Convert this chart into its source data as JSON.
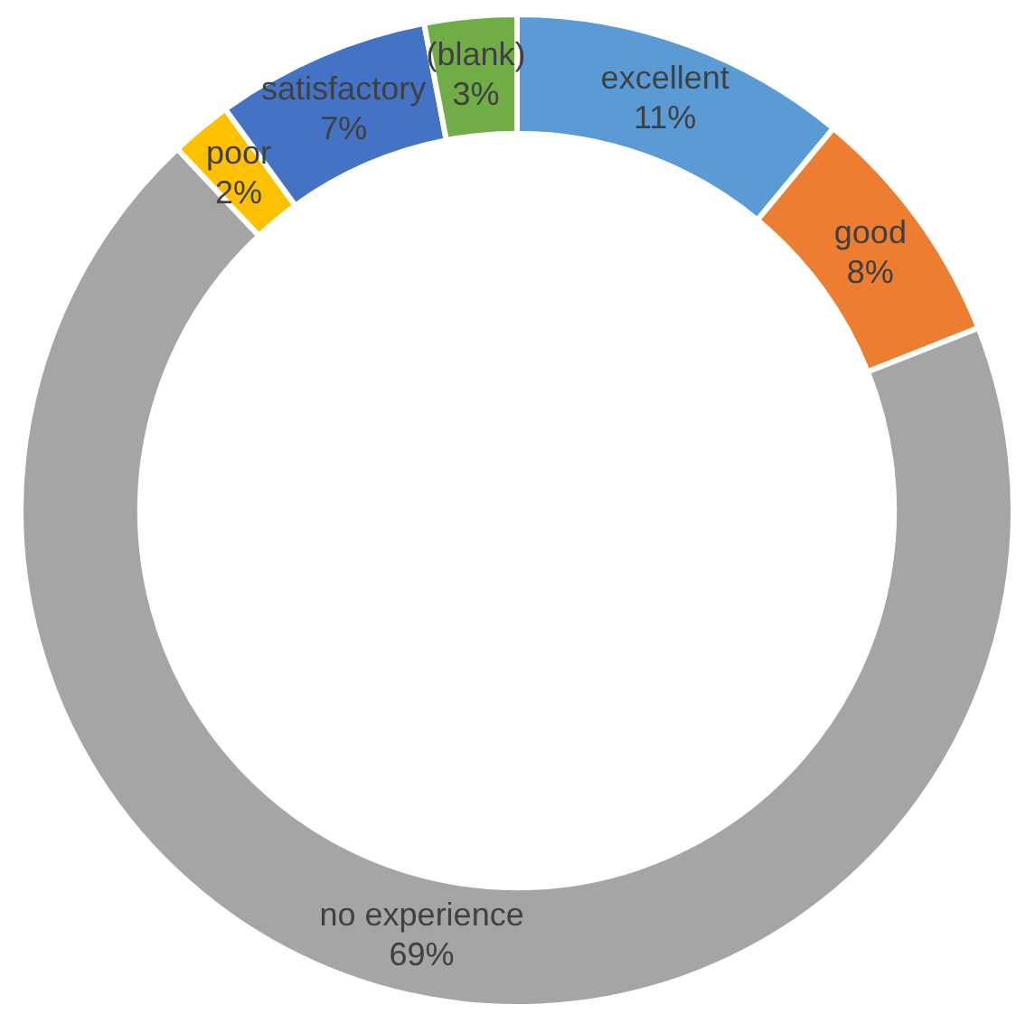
{
  "chart_data": {
    "type": "donut",
    "categories": [
      "excellent",
      "good",
      "no experience",
      "poor",
      "satisfactory",
      "(blank)"
    ],
    "values": [
      11,
      8,
      69,
      2,
      7,
      3
    ],
    "colors": [
      "#5b9bd5",
      "#ed7d31",
      "#a5a5a5",
      "#ffc000",
      "#4472c4",
      "#70ad47"
    ],
    "value_labels": [
      "11%",
      "8%",
      "69%",
      "2%",
      "7%",
      "3%"
    ],
    "legend": false
  }
}
